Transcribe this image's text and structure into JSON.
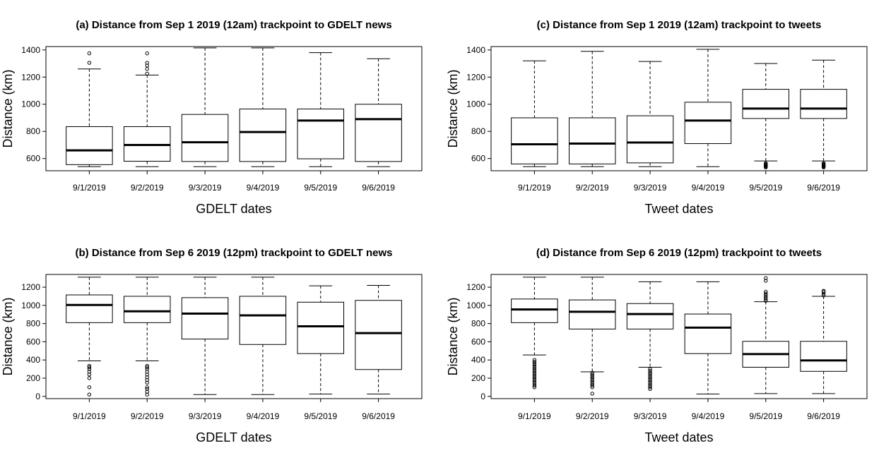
{
  "chart_data": [
    {
      "id": "a",
      "type": "boxplot",
      "title": "(a) Distance from Sep 1 2019 (12am) trackpoint to GDELT news",
      "xlabel": "GDELT dates",
      "ylabel": "Distance (km)",
      "ylim": [
        510,
        1425
      ],
      "yticks": [
        600,
        800,
        1000,
        1200,
        1400
      ],
      "categories": [
        "9/1/2019",
        "9/2/2019",
        "9/3/2019",
        "9/4/2019",
        "9/5/2019",
        "9/6/2019"
      ],
      "boxes": [
        {
          "min": 540,
          "q1": 555,
          "median": 660,
          "q3": 835,
          "max": 1260,
          "outliers": [
            1305,
            1375
          ]
        },
        {
          "min": 540,
          "q1": 580,
          "median": 700,
          "q3": 835,
          "max": 1215,
          "outliers": [
            1225,
            1260,
            1285,
            1305,
            1375
          ]
        },
        {
          "min": 540,
          "q1": 578,
          "median": 720,
          "q3": 925,
          "max": 1415,
          "outliers": []
        },
        {
          "min": 540,
          "q1": 578,
          "median": 795,
          "q3": 965,
          "max": 1415,
          "outliers": []
        },
        {
          "min": 540,
          "q1": 598,
          "median": 880,
          "q3": 965,
          "max": 1380,
          "outliers": []
        },
        {
          "min": 540,
          "q1": 578,
          "median": 890,
          "q3": 1000,
          "max": 1335,
          "outliers": []
        }
      ]
    },
    {
      "id": "c",
      "type": "boxplot",
      "title": "(c) Distance from Sep 1 2019 (12am) trackpoint to tweets",
      "xlabel": "Tweet dates",
      "ylabel": "Distance (km)",
      "ylim": [
        510,
        1425
      ],
      "yticks": [
        600,
        800,
        1000,
        1200,
        1400
      ],
      "categories": [
        "9/1/2019",
        "9/2/2019",
        "9/3/2019",
        "9/4/2019",
        "9/5/2019",
        "9/6/2019"
      ],
      "boxes": [
        {
          "min": 540,
          "q1": 560,
          "median": 705,
          "q3": 900,
          "max": 1320,
          "outliers": []
        },
        {
          "min": 540,
          "q1": 560,
          "median": 710,
          "q3": 900,
          "max": 1390,
          "outliers": []
        },
        {
          "min": 540,
          "q1": 568,
          "median": 718,
          "q3": 915,
          "max": 1315,
          "outliers": []
        },
        {
          "min": 540,
          "q1": 710,
          "median": 880,
          "q3": 1015,
          "max": 1405,
          "outliers": []
        },
        {
          "min": 582,
          "q1": 895,
          "median": 968,
          "q3": 1110,
          "max": 1300,
          "outliers": [
            535,
            540,
            545,
            550,
            555,
            560,
            565
          ]
        },
        {
          "min": 582,
          "q1": 895,
          "median": 968,
          "q3": 1110,
          "max": 1325,
          "outliers": [
            535,
            540,
            545,
            550,
            555,
            560,
            565
          ]
        }
      ]
    },
    {
      "id": "b",
      "type": "boxplot",
      "title": "(b) Distance from Sep 6 2019 (12pm) trackpoint to GDELT news",
      "xlabel": "GDELT dates",
      "ylabel": "Distance (km)",
      "ylim": [
        -25,
        1340
      ],
      "yticks": [
        0,
        200,
        400,
        600,
        800,
        1000,
        1200
      ],
      "categories": [
        "9/1/2019",
        "9/2/2019",
        "9/3/2019",
        "9/4/2019",
        "9/5/2019",
        "9/6/2019"
      ],
      "boxes": [
        {
          "min": 390,
          "q1": 810,
          "median": 1005,
          "q3": 1115,
          "max": 1310,
          "outliers": [
            20,
            100,
            200,
            240,
            270,
            300,
            320,
            335
          ]
        },
        {
          "min": 390,
          "q1": 810,
          "median": 935,
          "q3": 1100,
          "max": 1310,
          "outliers": [
            20,
            50,
            80,
            100,
            150,
            180,
            210,
            240,
            270,
            300,
            320,
            335
          ]
        },
        {
          "min": 20,
          "q1": 630,
          "median": 910,
          "q3": 1085,
          "max": 1310,
          "outliers": []
        },
        {
          "min": 20,
          "q1": 570,
          "median": 890,
          "q3": 1100,
          "max": 1310,
          "outliers": []
        },
        {
          "min": 25,
          "q1": 470,
          "median": 770,
          "q3": 1035,
          "max": 1215,
          "outliers": []
        },
        {
          "min": 25,
          "q1": 295,
          "median": 695,
          "q3": 1055,
          "max": 1220,
          "outliers": []
        }
      ]
    },
    {
      "id": "d",
      "type": "boxplot",
      "title": "(d) Distance from Sep 6 2019 (12pm) trackpoint to tweets",
      "xlabel": "Tweet dates",
      "ylabel": "Distance (km)",
      "ylim": [
        -25,
        1340
      ],
      "yticks": [
        0,
        200,
        400,
        600,
        800,
        1000,
        1200
      ],
      "categories": [
        "9/1/2019",
        "9/2/2019",
        "9/3/2019",
        "9/4/2019",
        "9/5/2019",
        "9/6/2019"
      ],
      "boxes": [
        {
          "min": 455,
          "q1": 810,
          "median": 955,
          "q3": 1070,
          "max": 1310,
          "outliers": [
            100,
            120,
            140,
            160,
            180,
            200,
            220,
            240,
            260,
            280,
            300,
            320,
            340,
            360,
            380,
            400
          ]
        },
        {
          "min": 270,
          "q1": 740,
          "median": 930,
          "q3": 1060,
          "max": 1310,
          "outliers": [
            30,
            100,
            120,
            140,
            160,
            180,
            200,
            220,
            240,
            260
          ]
        },
        {
          "min": 320,
          "q1": 740,
          "median": 905,
          "q3": 1020,
          "max": 1260,
          "outliers": [
            80,
            100,
            120,
            140,
            160,
            180,
            200,
            220,
            240,
            260,
            280,
            300
          ]
        },
        {
          "min": 25,
          "q1": 470,
          "median": 755,
          "q3": 905,
          "max": 1260,
          "outliers": []
        },
        {
          "min": 30,
          "q1": 320,
          "median": 465,
          "q3": 605,
          "max": 1040,
          "outliers": [
            1050,
            1070,
            1090,
            1110,
            1130,
            1150,
            1270,
            1300
          ]
        },
        {
          "min": 30,
          "q1": 275,
          "median": 395,
          "q3": 605,
          "max": 1100,
          "outliers": [
            1110,
            1130,
            1150,
            1160
          ]
        }
      ]
    }
  ]
}
